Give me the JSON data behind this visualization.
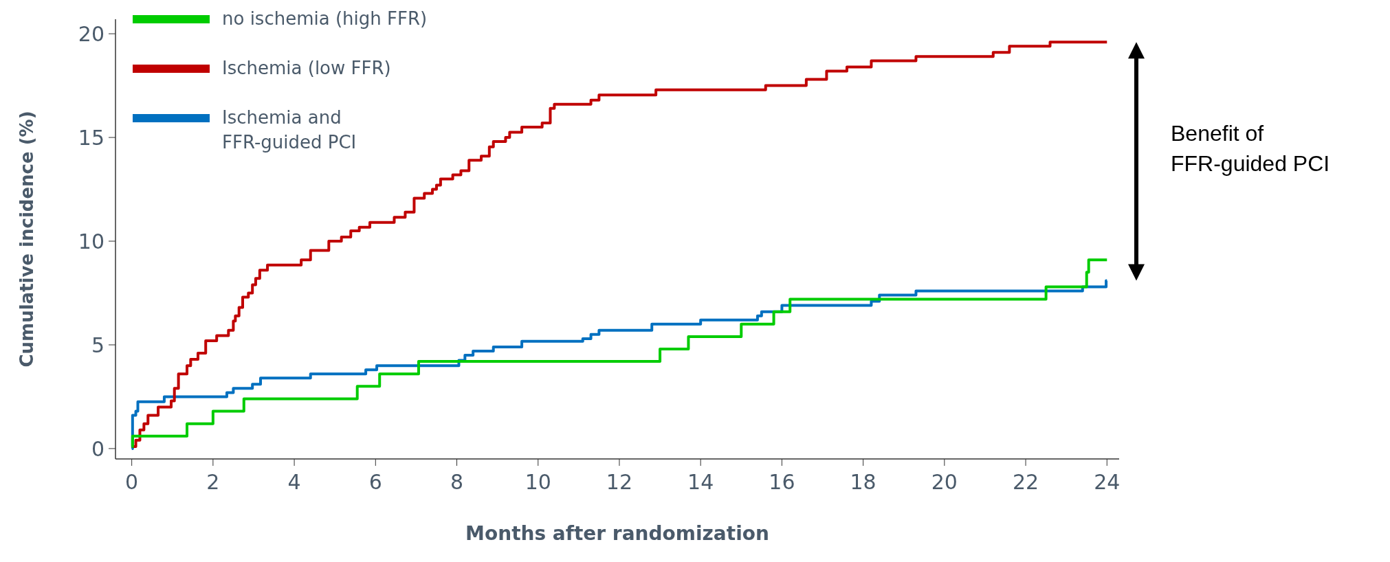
{
  "chart_data": {
    "type": "step",
    "xlabel": "Months after randomization",
    "ylabel": "Cumulative incidence (%)",
    "xlim": [
      -0.4,
      24.3
    ],
    "ylim": [
      -0.5,
      20.7
    ],
    "xticks": [
      0,
      2,
      4,
      6,
      8,
      10,
      12,
      14,
      16,
      18,
      20,
      22,
      24
    ],
    "yticks": [
      0,
      5,
      10,
      15,
      20
    ],
    "grid": false,
    "legend": "top left",
    "marker": "none",
    "line_style": "solid",
    "annotations": [
      "Benefit of FFR-guided PCI"
    ],
    "series": [
      {
        "name": "no ischemia (high FFR)",
        "color": "#00cc00",
        "x": [
          0,
          0.02,
          1.36,
          2.0,
          2.76,
          5.55,
          6.1,
          7.06,
          13.0,
          13.7,
          15.0,
          15.8,
          16.2,
          22.5,
          23.5,
          23.55,
          24
        ],
        "values": [
          0.1,
          0.6,
          1.2,
          1.8,
          2.4,
          3.0,
          3.6,
          4.2,
          4.8,
          5.4,
          6.0,
          6.6,
          7.2,
          7.8,
          8.5,
          9.1,
          9.1
        ]
      },
      {
        "name": "Ischemia (low FFR)",
        "color": "#c00000",
        "x": [
          0,
          0.1,
          0.2,
          0.3,
          0.4,
          0.65,
          0.97,
          1.05,
          1.15,
          1.36,
          1.45,
          1.63,
          1.82,
          2.09,
          2.38,
          2.5,
          2.55,
          2.64,
          2.73,
          2.87,
          2.97,
          3.05,
          3.15,
          3.34,
          4.17,
          4.4,
          4.85,
          5.16,
          5.39,
          5.6,
          5.86,
          6.46,
          6.73,
          6.95,
          7.2,
          7.4,
          7.5,
          7.6,
          7.9,
          8.1,
          8.3,
          8.6,
          8.8,
          8.9,
          9.2,
          9.3,
          9.6,
          10.1,
          10.3,
          10.4,
          11.3,
          11.5,
          12.9,
          15.6,
          16.6,
          17.1,
          17.6,
          18.2,
          19.3,
          21.2,
          21.6,
          22.6,
          24
        ],
        "values": [
          0.1,
          0.4,
          0.9,
          1.2,
          1.6,
          2.0,
          2.3,
          2.9,
          3.6,
          4.0,
          4.3,
          4.6,
          5.2,
          5.45,
          5.7,
          6.15,
          6.4,
          6.8,
          7.3,
          7.5,
          7.9,
          8.2,
          8.6,
          8.85,
          9.1,
          9.55,
          10.0,
          10.2,
          10.5,
          10.67,
          10.9,
          11.15,
          11.4,
          12.07,
          12.3,
          12.5,
          12.7,
          13.0,
          13.2,
          13.4,
          13.9,
          14.1,
          14.55,
          14.8,
          15.0,
          15.25,
          15.5,
          15.7,
          16.4,
          16.6,
          16.8,
          17.05,
          17.3,
          17.5,
          17.8,
          18.2,
          18.4,
          18.7,
          18.9,
          19.1,
          19.4,
          19.6,
          19.6
        ]
      },
      {
        "name": "Ischemia and FFR-guided PCI",
        "color": "#0070c0",
        "x": [
          0,
          0.02,
          0.1,
          0.15,
          0.8,
          2.34,
          2.5,
          2.97,
          3.17,
          4.4,
          5.76,
          6.03,
          8.05,
          8.2,
          8.4,
          8.9,
          9.6,
          11.1,
          11.3,
          11.5,
          12.8,
          14.0,
          15.4,
          15.5,
          16.0,
          18.2,
          18.4,
          19.3,
          23.4,
          23.98,
          24
        ],
        "values": [
          0.0,
          1.6,
          1.8,
          2.26,
          2.5,
          2.7,
          2.9,
          3.1,
          3.4,
          3.6,
          3.8,
          4.0,
          4.25,
          4.5,
          4.7,
          4.9,
          5.17,
          5.3,
          5.5,
          5.7,
          6.0,
          6.2,
          6.4,
          6.6,
          6.9,
          7.1,
          7.4,
          7.6,
          7.8,
          8.1,
          8.1
        ]
      }
    ]
  }
}
